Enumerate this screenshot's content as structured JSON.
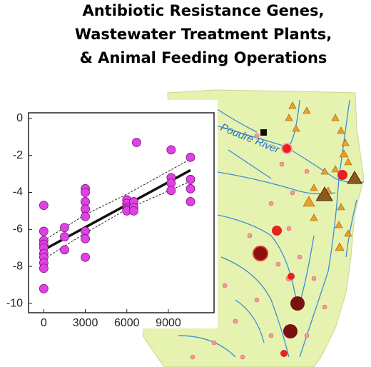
{
  "chart_data": {
    "type": "scatter",
    "title": [
      "Antibiotic Resistance Genes,",
      "Wastewater Treatment Plants,",
      "& Animal Feeding Operations"
    ],
    "x": [
      0,
      0,
      0,
      0,
      0,
      0,
      0,
      0,
      0,
      0,
      1500,
      1500,
      1500,
      3000,
      3000,
      3000,
      3000,
      3000,
      3000,
      3000,
      3000,
      6000,
      6000,
      6000,
      6000,
      6000,
      6500,
      6500,
      6500,
      6700,
      9200,
      9200,
      9200,
      9200,
      10600,
      10600,
      10600,
      10600
    ],
    "values": [
      -4.7,
      -6.1,
      -6.6,
      -6.8,
      -7.0,
      -7.3,
      -7.5,
      -7.8,
      -8.1,
      -9.2,
      -5.9,
      -6.4,
      -7.1,
      -3.8,
      -4.0,
      -4.5,
      -4.9,
      -5.3,
      -6.1,
      -6.5,
      -7.5,
      -4.4,
      -4.6,
      -4.8,
      -4.9,
      -5.0,
      -4.5,
      -4.8,
      -5.0,
      -1.3,
      -1.7,
      -3.2,
      -3.5,
      -3.9,
      -2.1,
      -3.3,
      -3.8,
      -4.5
    ],
    "color": "#e23fe6",
    "fit": {
      "x": [
        0,
        10600
      ],
      "values": [
        -7.1,
        -2.8
      ]
    },
    "band_upper": {
      "x": [
        0,
        3000,
        6000,
        10600
      ],
      "values": [
        -6.6,
        -5.2,
        -4.1,
        -2.2
      ]
    },
    "band_lower": {
      "x": [
        0,
        3000,
        6000,
        10600
      ],
      "values": [
        -7.6,
        -6.2,
        -4.9,
        -3.4
      ]
    },
    "xlim": [
      -1100,
      12300
    ],
    "ylim": [
      -10.5,
      0.3
    ],
    "xticks": [
      0,
      3000,
      6000,
      9000
    ],
    "yticks": [
      0,
      -2,
      -4,
      -6,
      -8,
      -10
    ]
  },
  "map": {
    "label": "Poudre River"
  }
}
